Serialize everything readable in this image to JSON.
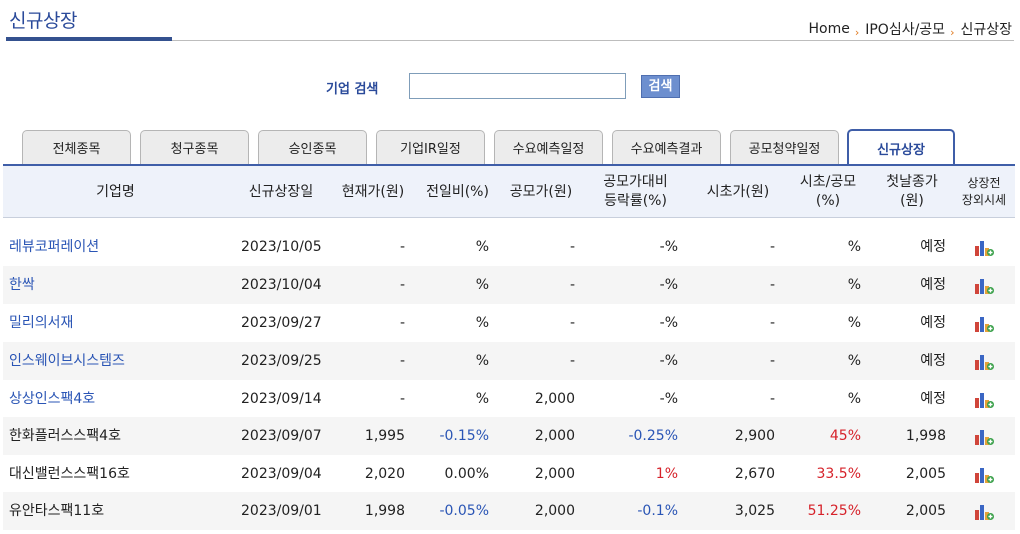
{
  "header": {
    "title": "신규상장",
    "breadcrumb": [
      "Home",
      "IPO심사/공모",
      "신규상장"
    ],
    "breadcrumb_sep": "›"
  },
  "search": {
    "label": "기업 검색",
    "value": "",
    "placeholder": "",
    "button_label": "검색"
  },
  "tabs": [
    {
      "label": "전체종목"
    },
    {
      "label": "청구종목"
    },
    {
      "label": "승인종목"
    },
    {
      "label": "기업IR일정"
    },
    {
      "label": "수요예측일정"
    },
    {
      "label": "수요예측결과"
    },
    {
      "label": "공모청약일정"
    },
    {
      "label": "신규상장",
      "active": true
    }
  ],
  "table": {
    "columns": [
      {
        "label": "기업명"
      },
      {
        "label": "신규상장일"
      },
      {
        "label": "현재가(원)"
      },
      {
        "label": "전일비(%)"
      },
      {
        "label": "공모가(원)"
      },
      {
        "label": "공모가대비\n등락률(%)"
      },
      {
        "label": "시초가(원)"
      },
      {
        "label": "시초/공모\n(%)"
      },
      {
        "label": "첫날종가\n(원)"
      },
      {
        "label": "상장전\n장외시세"
      }
    ],
    "rows": [
      {
        "name": "레뷰코퍼레이션",
        "date": "2023/10/05",
        "price": "-",
        "change": "%",
        "offer": "-",
        "vs_offer": "-%",
        "open": "-",
        "open_offer": "%",
        "first_close": "예정",
        "link": true
      },
      {
        "name": "한싹",
        "date": "2023/10/04",
        "price": "-",
        "change": "%",
        "offer": "-",
        "vs_offer": "-%",
        "open": "-",
        "open_offer": "%",
        "first_close": "예정",
        "link": true
      },
      {
        "name": "밀리의서재",
        "date": "2023/09/27",
        "price": "-",
        "change": "%",
        "offer": "-",
        "vs_offer": "-%",
        "open": "-",
        "open_offer": "%",
        "first_close": "예정",
        "link": true
      },
      {
        "name": "인스웨이브시스템즈",
        "date": "2023/09/25",
        "price": "-",
        "change": "%",
        "offer": "-",
        "vs_offer": "-%",
        "open": "-",
        "open_offer": "%",
        "first_close": "예정",
        "link": true
      },
      {
        "name": "상상인스팩4호",
        "date": "2023/09/14",
        "price": "-",
        "change": "%",
        "offer": "2,000",
        "vs_offer": "-%",
        "open": "-",
        "open_offer": "%",
        "first_close": "예정",
        "link": true
      },
      {
        "name": "한화플러스스팩4호",
        "date": "2023/09/07",
        "price": "1,995",
        "change": "-0.15%",
        "change_color": "blue",
        "offer": "2,000",
        "vs_offer": "-0.25%",
        "vs_offer_color": "blue",
        "open": "2,900",
        "open_offer": "45%",
        "open_offer_color": "red",
        "first_close": "1,998",
        "link": false
      },
      {
        "name": "대신밸런스스팩16호",
        "date": "2023/09/04",
        "price": "2,020",
        "change": "0.00%",
        "offer": "2,000",
        "vs_offer": "1%",
        "vs_offer_color": "red",
        "open": "2,670",
        "open_offer": "33.5%",
        "open_offer_color": "red",
        "first_close": "2,005",
        "link": false
      },
      {
        "name": "유안타스팩11호",
        "date": "2023/09/01",
        "price": "1,998",
        "change": "-0.05%",
        "change_color": "blue",
        "offer": "2,000",
        "vs_offer": "-0.1%",
        "vs_offer_color": "blue",
        "open": "3,025",
        "open_offer": "51.25%",
        "open_offer_color": "red",
        "first_close": "2,005",
        "link": false
      }
    ]
  },
  "colors": {
    "brand": "#2a4a9a",
    "link": "#2a55b5",
    "negative": "#2a55b5",
    "positive": "#d6222a",
    "tab_active_border": "#3f5ea8",
    "header_bg": "#eef2fa"
  },
  "icons": {
    "chart": "bar-chart-icon"
  }
}
